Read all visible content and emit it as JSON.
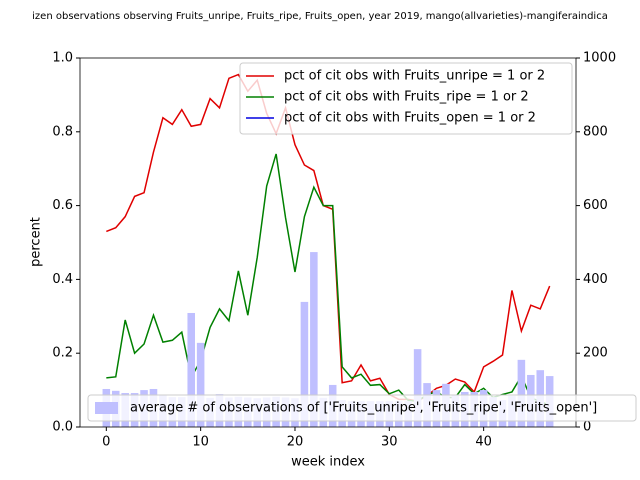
{
  "chart_data": {
    "type": "line",
    "title": "izen observations observing Fruits_unripe, Fruits_ripe, Fruits_open, year 2019, mango(allvarieties)-mangiferaindica",
    "xlabel": "week index",
    "ylabel": "percent",
    "x": [
      0,
      1,
      2,
      3,
      4,
      5,
      6,
      7,
      8,
      9,
      10,
      11,
      12,
      13,
      14,
      15,
      16,
      17,
      18,
      19,
      20,
      21,
      22,
      23,
      24,
      25,
      26,
      27,
      28,
      29,
      30,
      31,
      32,
      33,
      34,
      35,
      36,
      37,
      38,
      39,
      40,
      41,
      42,
      43,
      44,
      45,
      46,
      47
    ],
    "xlim": [
      -2.79,
      49.79
    ],
    "xticks": [
      0,
      10,
      20,
      30,
      40
    ],
    "ylim": [
      0,
      1
    ],
    "yticks": [
      {
        "value": 0,
        "label": "0.0"
      },
      {
        "value": 0.2,
        "label": "0.2"
      },
      {
        "value": 0.4,
        "label": "0.4"
      },
      {
        "value": 0.6,
        "label": "0.6"
      },
      {
        "value": 0.8,
        "label": "0.8"
      },
      {
        "value": 1,
        "label": "1.0"
      }
    ],
    "y2lim": [
      0,
      1000
    ],
    "y2ticks": [
      0,
      200,
      400,
      600,
      800,
      1000
    ],
    "legend": "upper right",
    "series": [
      {
        "name": "pct of cit obs with Fruits_unripe = 1 or 2",
        "color": "#e00000",
        "values": [
          0.53,
          0.54,
          0.57,
          0.625,
          0.635,
          0.745,
          0.838,
          0.82,
          0.86,
          0.815,
          0.82,
          0.89,
          0.865,
          0.945,
          0.955,
          0.91,
          0.94,
          0.85,
          0.795,
          0.865,
          0.765,
          0.71,
          0.695,
          0.6,
          0.59,
          0.12,
          0.125,
          0.168,
          0.125,
          0.132,
          0.088,
          0.075,
          0.075,
          0.07,
          0.085,
          0.105,
          0.113,
          0.13,
          0.122,
          0.095,
          0.163,
          0.178,
          0.195,
          0.37,
          0.26,
          0.33,
          0.32,
          0.382
        ]
      },
      {
        "name": "pct of cit obs with Fruits_ripe = 1 or 2",
        "color": "#008000",
        "values": [
          0.133,
          0.136,
          0.29,
          0.2,
          0.225,
          0.303,
          0.23,
          0.235,
          0.257,
          0.135,
          0.18,
          0.27,
          0.32,
          0.288,
          0.423,
          0.303,
          0.46,
          0.653,
          0.74,
          0.567,
          0.42,
          0.57,
          0.65,
          0.6,
          0.6,
          0.163,
          0.133,
          0.143,
          0.113,
          0.115,
          0.09,
          0.1,
          0.072,
          0.07,
          0.088,
          0.095,
          0.08,
          0.08,
          0.115,
          0.09,
          0.105,
          0.08,
          0.088,
          0.095,
          0.138,
          0.08,
          0.068,
          0.06
        ]
      },
      {
        "name": "pct of cit obs with Fruits_open = 1 or 2",
        "color": "#0000e0",
        "values": [
          null,
          null,
          null,
          null,
          null,
          null,
          null,
          null,
          null,
          null,
          null,
          null,
          null,
          null,
          null,
          null,
          null,
          null,
          null,
          null,
          null,
          null,
          null,
          null,
          null,
          null,
          null,
          null,
          null,
          null,
          null,
          null,
          null,
          null,
          null,
          null,
          null,
          null,
          null,
          null,
          null,
          null,
          null,
          null,
          null,
          null,
          null,
          null
        ]
      },
      {
        "name": "average # of observations of ['Fruits_unripe', 'Fruits_ripe', 'Fruits_open']",
        "color": "#bfbfff",
        "axis": "y2",
        "type": "bar",
        "values": [
          103,
          98,
          92,
          92,
          100,
          103,
          87,
          81,
          81,
          309,
          228,
          79,
          89,
          80,
          82,
          80,
          78,
          80,
          82,
          80,
          78,
          339,
          474,
          79,
          114,
          73,
          70,
          70,
          70,
          70,
          70,
          70,
          70,
          211,
          119,
          100,
          117,
          87,
          95,
          95,
          100,
          81,
          73,
          84,
          182,
          141,
          154,
          138
        ]
      }
    ]
  }
}
